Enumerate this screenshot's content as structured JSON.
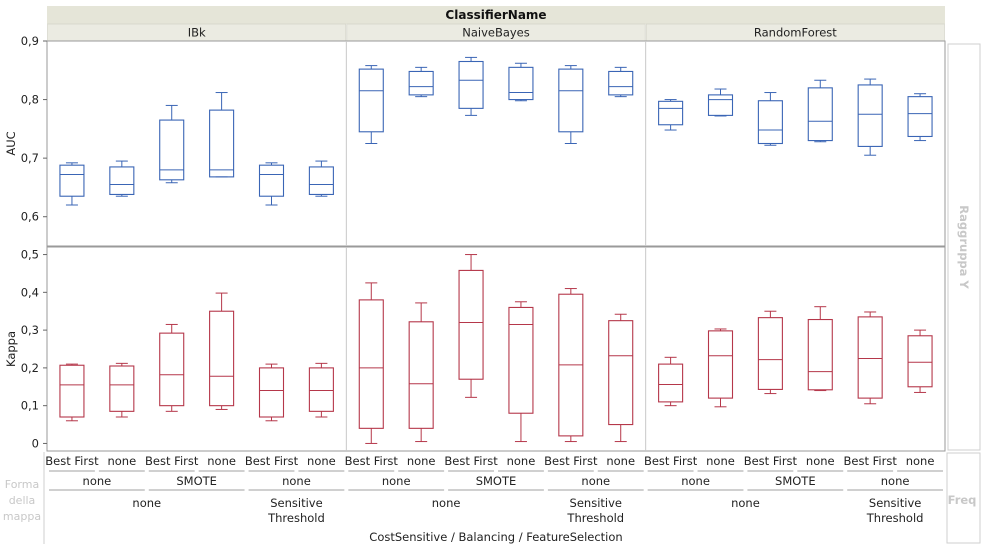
{
  "chart_data": {
    "type": "boxplot",
    "title": "ClassifierName",
    "classifiers": [
      "IBk",
      "NaiveBayes",
      "RandomForest"
    ],
    "feature_selection": [
      "Best First",
      "none",
      "Best First",
      "none",
      "Best First",
      "none"
    ],
    "balancing": [
      "none",
      "SMOTE",
      "none"
    ],
    "cost_sensitive": [
      "none",
      "Sensitive Threshold"
    ],
    "x_axis_title": "CostSensitive / Balancing / FeatureSelection",
    "y_group_label": "Raggruppa Y",
    "map_shape_label": "Forma della mappa",
    "freq_label": "Freq",
    "panels": [
      {
        "name": "AUC",
        "color": "#3a65b5",
        "ylim": [
          0.55,
          0.9
        ],
        "ticks": [
          "0,6",
          "0,7",
          "0,8",
          "0,9"
        ],
        "tick_values": [
          0.6,
          0.7,
          0.8,
          0.9
        ],
        "series": [
          {
            "classifier": "IBk",
            "boxes": [
              {
                "min": 0.62,
                "q1": 0.635,
                "median": 0.672,
                "q3": 0.688,
                "max": 0.692
              },
              {
                "min": 0.635,
                "q1": 0.638,
                "median": 0.655,
                "q3": 0.685,
                "max": 0.695
              },
              {
                "min": 0.658,
                "q1": 0.663,
                "median": 0.68,
                "q3": 0.765,
                "max": 0.79
              },
              {
                "min": 0.668,
                "q1": 0.668,
                "median": 0.68,
                "q3": 0.782,
                "max": 0.812
              },
              {
                "min": 0.62,
                "q1": 0.635,
                "median": 0.672,
                "q3": 0.688,
                "max": 0.692
              },
              {
                "min": 0.635,
                "q1": 0.638,
                "median": 0.655,
                "q3": 0.685,
                "max": 0.695
              }
            ]
          },
          {
            "classifier": "NaiveBayes",
            "boxes": [
              {
                "min": 0.725,
                "q1": 0.745,
                "median": 0.815,
                "q3": 0.852,
                "max": 0.858
              },
              {
                "min": 0.805,
                "q1": 0.808,
                "median": 0.822,
                "q3": 0.848,
                "max": 0.855
              },
              {
                "min": 0.773,
                "q1": 0.785,
                "median": 0.833,
                "q3": 0.865,
                "max": 0.872
              },
              {
                "min": 0.798,
                "q1": 0.8,
                "median": 0.812,
                "q3": 0.855,
                "max": 0.862
              },
              {
                "min": 0.725,
                "q1": 0.745,
                "median": 0.815,
                "q3": 0.852,
                "max": 0.858
              },
              {
                "min": 0.805,
                "q1": 0.808,
                "median": 0.822,
                "q3": 0.848,
                "max": 0.855
              }
            ]
          },
          {
            "classifier": "RandomForest",
            "boxes": [
              {
                "min": 0.748,
                "q1": 0.757,
                "median": 0.785,
                "q3": 0.797,
                "max": 0.8
              },
              {
                "min": 0.772,
                "q1": 0.773,
                "median": 0.8,
                "q3": 0.808,
                "max": 0.818
              },
              {
                "min": 0.722,
                "q1": 0.725,
                "median": 0.748,
                "q3": 0.798,
                "max": 0.812
              },
              {
                "min": 0.728,
                "q1": 0.73,
                "median": 0.763,
                "q3": 0.82,
                "max": 0.833
              },
              {
                "min": 0.705,
                "q1": 0.72,
                "median": 0.775,
                "q3": 0.825,
                "max": 0.835
              },
              {
                "min": 0.73,
                "q1": 0.737,
                "median": 0.776,
                "q3": 0.805,
                "max": 0.81
              }
            ]
          }
        ]
      },
      {
        "name": "Kappa",
        "color": "#b5374a",
        "ylim": [
          -0.02,
          0.52
        ],
        "ticks": [
          "0",
          "0,1",
          "0,2",
          "0,3",
          "0,4",
          "0,5"
        ],
        "tick_values": [
          0,
          0.1,
          0.2,
          0.3,
          0.4,
          0.5
        ],
        "series": [
          {
            "classifier": "IBk",
            "boxes": [
              {
                "min": 0.06,
                "q1": 0.07,
                "median": 0.155,
                "q3": 0.207,
                "max": 0.21
              },
              {
                "min": 0.07,
                "q1": 0.085,
                "median": 0.155,
                "q3": 0.205,
                "max": 0.212
              },
              {
                "min": 0.085,
                "q1": 0.1,
                "median": 0.182,
                "q3": 0.292,
                "max": 0.315
              },
              {
                "min": 0.09,
                "q1": 0.1,
                "median": 0.178,
                "q3": 0.35,
                "max": 0.398
              },
              {
                "min": 0.06,
                "q1": 0.07,
                "median": 0.14,
                "q3": 0.2,
                "max": 0.21
              },
              {
                "min": 0.07,
                "q1": 0.085,
                "median": 0.14,
                "q3": 0.2,
                "max": 0.212
              }
            ]
          },
          {
            "classifier": "NaiveBayes",
            "boxes": [
              {
                "min": 0.0,
                "q1": 0.04,
                "median": 0.2,
                "q3": 0.38,
                "max": 0.425
              },
              {
                "min": 0.005,
                "q1": 0.04,
                "median": 0.158,
                "q3": 0.322,
                "max": 0.372
              },
              {
                "min": 0.122,
                "q1": 0.17,
                "median": 0.32,
                "q3": 0.458,
                "max": 0.5
              },
              {
                "min": 0.005,
                "q1": 0.08,
                "median": 0.315,
                "q3": 0.36,
                "max": 0.375
              },
              {
                "min": 0.005,
                "q1": 0.02,
                "median": 0.208,
                "q3": 0.395,
                "max": 0.41
              },
              {
                "min": 0.005,
                "q1": 0.05,
                "median": 0.232,
                "q3": 0.325,
                "max": 0.342
              }
            ]
          },
          {
            "classifier": "RandomForest",
            "boxes": [
              {
                "min": 0.1,
                "q1": 0.11,
                "median": 0.156,
                "q3": 0.21,
                "max": 0.228
              },
              {
                "min": 0.097,
                "q1": 0.12,
                "median": 0.232,
                "q3": 0.298,
                "max": 0.303
              },
              {
                "min": 0.132,
                "q1": 0.143,
                "median": 0.222,
                "q3": 0.333,
                "max": 0.35
              },
              {
                "min": 0.14,
                "q1": 0.142,
                "median": 0.19,
                "q3": 0.328,
                "max": 0.362
              },
              {
                "min": 0.105,
                "q1": 0.12,
                "median": 0.225,
                "q3": 0.335,
                "max": 0.348
              },
              {
                "min": 0.135,
                "q1": 0.15,
                "median": 0.215,
                "q3": 0.285,
                "max": 0.3
              }
            ]
          }
        ]
      }
    ]
  }
}
